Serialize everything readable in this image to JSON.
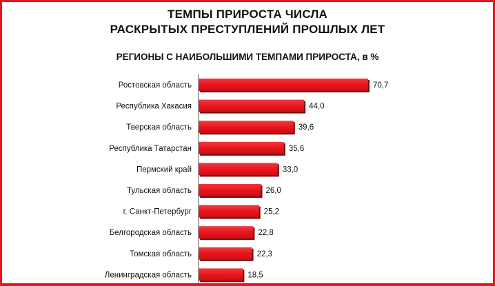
{
  "header": {
    "title_line1": "ТЕМПЫ ПРИРОСТА ЧИСЛА",
    "title_line2": "РАСКРЫТЫХ ПРЕСТУПЛЕНИЙ ПРОШЛЫХ ЛЕТ"
  },
  "colors": {
    "frame": "#e8161c",
    "bar": "#e8161c",
    "bar_shadow": "#7a0a0a"
  },
  "chart_data": {
    "type": "bar",
    "orientation": "horizontal",
    "title": "РЕГИОНЫ С НАИБОЛЬШИМИ ТЕМПАМИ ПРИРОСТА, в %",
    "categories": [
      "Ростовская область",
      "Республика Хакасия",
      "Тверская область",
      "Республика Татарстан",
      "Пермский край",
      "Тульская область",
      "г. Санкт-Петербург",
      "Белгородская область",
      "Томская область",
      "Ленинградская область"
    ],
    "values": [
      70.7,
      44.0,
      39.6,
      35.6,
      33.0,
      26.0,
      25.2,
      22.8,
      22.3,
      18.5
    ],
    "value_labels": [
      "70,7",
      "44,0",
      "39,6",
      "35,6",
      "33,0",
      "26,0",
      "25,2",
      "22,8",
      "22,3",
      "18,5"
    ],
    "xlabel": "",
    "ylabel": "",
    "grid": false,
    "legend": "none"
  }
}
